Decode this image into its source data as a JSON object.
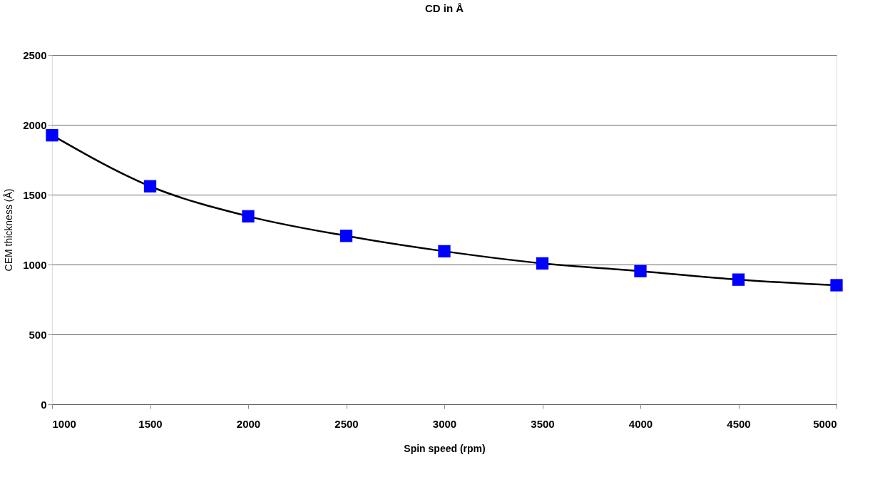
{
  "chart_data": {
    "type": "line",
    "title": "CD in Å",
    "xlabel": "Spin speed (rpm)",
    "ylabel": "CEM thickness (Å)",
    "x": [
      1000,
      1500,
      2000,
      2500,
      3000,
      3500,
      4000,
      4500,
      5000
    ],
    "series": [
      {
        "color": "#0000ff",
        "values": [
          1925,
          1560,
          1345,
          1205,
          1095,
          1008,
          953,
          892,
          852
        ]
      }
    ],
    "xlim": [
      1000,
      5000
    ],
    "xticks": [
      1000,
      1500,
      2000,
      2500,
      3000,
      3500,
      4000,
      4500,
      5000
    ],
    "ylim": [
      0,
      2500
    ],
    "yticks": [
      0,
      500,
      1000,
      1500,
      2000,
      2500
    ],
    "grid": "y",
    "marker": "square",
    "line_style": "solid"
  }
}
